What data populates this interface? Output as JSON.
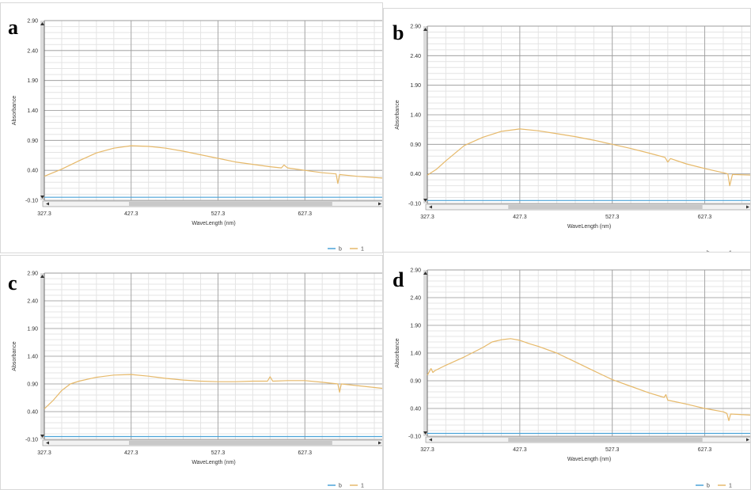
{
  "colors": {
    "series_b": "#4aa3d8",
    "series_1": "#e6b96a",
    "major_grid": "#9a9a9a",
    "minor_grid": "#e4e4e4",
    "plot_border": "#6e6e6e",
    "scrollbar_thumb": "#c8c8c8",
    "scrollbar_track": "#f2f2f2"
  },
  "chart_data": [
    {
      "type": "line",
      "panel_label": "a",
      "xlabel": "WaveLength (nm)",
      "ylabel": "Absorbance",
      "x_ticks": [
        "327.3",
        "427.3",
        "527.3",
        "627.3"
      ],
      "y_ticks": [
        "-0.10",
        "0.40",
        "0.90",
        "1.40",
        "1.90",
        "2.40",
        "2.90"
      ],
      "xlim": [
        327.3,
        717.3
      ],
      "ylim": [
        -0.1,
        2.9
      ],
      "grid": true,
      "legend_position": "bottom-right",
      "series": [
        {
          "name": "b",
          "x": [
            327.3,
            717.3
          ],
          "y": [
            -0.05,
            -0.05
          ]
        },
        {
          "name": "1",
          "x": [
            327.3,
            347.3,
            367.3,
            387.3,
            407.3,
            427.3,
            447.3,
            467.3,
            487.3,
            507.3,
            527.3,
            547.3,
            567.3,
            587.3,
            600.3,
            603.3,
            607.3,
            627.3,
            647.3,
            663.3,
            665.3,
            667.3,
            687.3,
            717.3
          ],
          "y": [
            0.3,
            0.42,
            0.56,
            0.69,
            0.77,
            0.81,
            0.8,
            0.77,
            0.72,
            0.66,
            0.6,
            0.54,
            0.5,
            0.46,
            0.44,
            0.49,
            0.44,
            0.4,
            0.36,
            0.34,
            0.18,
            0.33,
            0.3,
            0.27
          ]
        }
      ]
    },
    {
      "type": "line",
      "panel_label": "b",
      "xlabel": "WaveLength (nm)",
      "ylabel": "Absorbance",
      "x_ticks": [
        "327.3",
        "427.3",
        "527.3",
        "627.3"
      ],
      "y_ticks": [
        "-0.10",
        "0.40",
        "0.90",
        "1.40",
        "1.90",
        "2.40",
        "2.90"
      ],
      "xlim": [
        327.3,
        677.3
      ],
      "ylim": [
        -0.1,
        2.9
      ],
      "grid": true,
      "legend_position": "bottom-right",
      "series": [
        {
          "name": "b",
          "x": [
            327.3,
            677.3
          ],
          "y": [
            -0.05,
            -0.05
          ]
        },
        {
          "name": "1",
          "x": [
            327.3,
            337.3,
            347.3,
            367.3,
            387.3,
            407.3,
            427.3,
            447.3,
            467.3,
            487.3,
            507.3,
            527.3,
            547.3,
            567.3,
            584.3,
            587.3,
            590.3,
            607.3,
            627.3,
            647.3,
            652.3,
            654.3,
            657.3,
            677.3
          ],
          "y": [
            0.38,
            0.48,
            0.62,
            0.88,
            1.02,
            1.12,
            1.16,
            1.13,
            1.08,
            1.03,
            0.97,
            0.9,
            0.83,
            0.75,
            0.68,
            0.6,
            0.66,
            0.57,
            0.49,
            0.42,
            0.4,
            0.2,
            0.39,
            0.38
          ]
        }
      ]
    },
    {
      "type": "line",
      "panel_label": "c",
      "xlabel": "WaveLength (nm)",
      "ylabel": "Absorbance",
      "x_ticks": [
        "327.3",
        "427.3",
        "527.3",
        "627.3"
      ],
      "y_ticks": [
        "-0.10",
        "0.40",
        "0.90",
        "1.40",
        "1.90",
        "2.40",
        "2.90"
      ],
      "xlim": [
        327.3,
        717.3
      ],
      "ylim": [
        -0.1,
        2.9
      ],
      "grid": true,
      "legend_position": "bottom-right",
      "series": [
        {
          "name": "b",
          "x": [
            327.3,
            717.3
          ],
          "y": [
            -0.05,
            -0.05
          ]
        },
        {
          "name": "1",
          "x": [
            327.3,
            337.3,
            347.3,
            357.3,
            367.3,
            387.3,
            407.3,
            427.3,
            447.3,
            467.3,
            487.3,
            507.3,
            527.3,
            547.3,
            567.3,
            584.3,
            587.3,
            590.3,
            607.3,
            627.3,
            647.3,
            665.3,
            667.3,
            669.3,
            687.3,
            717.3
          ],
          "y": [
            0.45,
            0.6,
            0.78,
            0.9,
            0.95,
            1.02,
            1.06,
            1.07,
            1.04,
            1.0,
            0.97,
            0.95,
            0.94,
            0.94,
            0.95,
            0.95,
            1.03,
            0.95,
            0.96,
            0.96,
            0.93,
            0.9,
            0.75,
            0.9,
            0.87,
            0.82
          ]
        }
      ]
    },
    {
      "type": "line",
      "panel_label": "d",
      "xlabel": "WaveLength (nm)",
      "ylabel": "Absorbance",
      "x_ticks": [
        "327.3",
        "427.3",
        "527.3",
        "627.3"
      ],
      "y_ticks": [
        "-0.10",
        "0.40",
        "0.90",
        "1.40",
        "1.90",
        "2.40",
        "2.90"
      ],
      "xlim": [
        327.3,
        677.3
      ],
      "ylim": [
        -0.1,
        2.9
      ],
      "grid": true,
      "legend_position": "bottom-right",
      "series": [
        {
          "name": "b",
          "x": [
            327.3,
            677.3
          ],
          "y": [
            -0.05,
            -0.05
          ]
        },
        {
          "name": "1",
          "x": [
            327.3,
            331.3,
            333.3,
            335.3,
            347.3,
            367.3,
            387.3,
            397.3,
            407.3,
            417.3,
            427.3,
            437.3,
            447.3,
            467.3,
            487.3,
            507.3,
            527.3,
            547.3,
            567.3,
            583.3,
            585.3,
            587.3,
            607.3,
            627.3,
            647.3,
            651.3,
            653.3,
            655.3,
            677.3
          ],
          "y": [
            1.0,
            1.12,
            1.05,
            1.08,
            1.18,
            1.33,
            1.5,
            1.6,
            1.64,
            1.66,
            1.63,
            1.57,
            1.52,
            1.4,
            1.24,
            1.08,
            0.92,
            0.8,
            0.68,
            0.6,
            0.65,
            0.55,
            0.48,
            0.4,
            0.34,
            0.31,
            0.18,
            0.3,
            0.28
          ]
        }
      ]
    }
  ]
}
